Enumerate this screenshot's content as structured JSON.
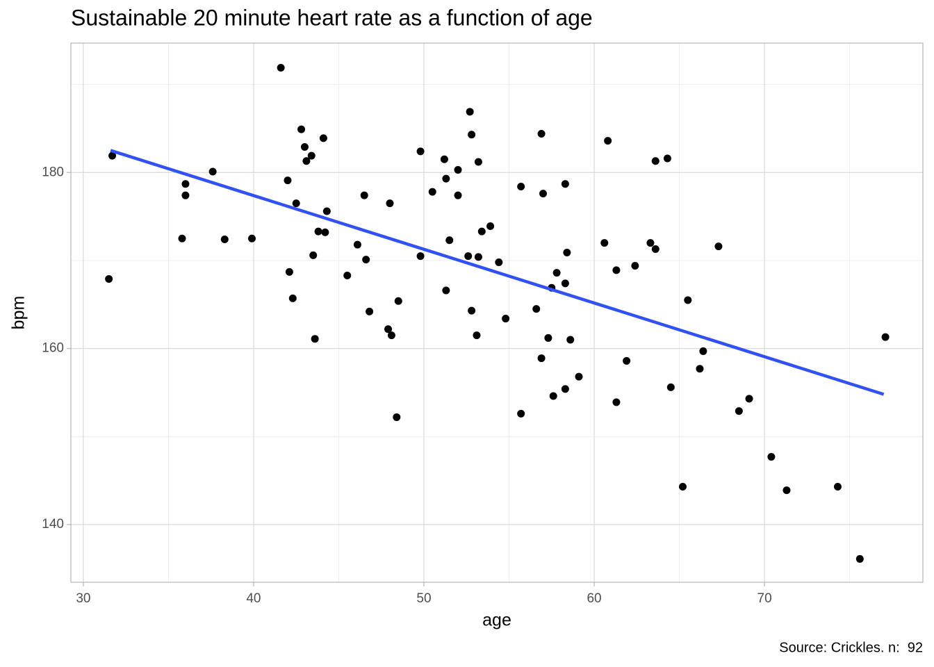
{
  "chart_data": {
    "type": "scatter",
    "title": "Sustainable 20 minute heart rate as a function of age",
    "x_label": "age",
    "y_label": "bpm",
    "caption": "Source: Crickles. n:  92",
    "x": [
      31.7,
      31.5,
      36.0,
      36.0,
      37.6,
      35.8,
      38.3,
      39.9,
      41.6,
      42.0,
      42.8,
      43.0,
      43.4,
      43.1,
      44.1,
      42.5,
      44.3,
      43.8,
      44.2,
      43.5,
      42.1,
      42.3,
      43.6,
      45.5,
      46.1,
      46.5,
      46.6,
      46.8,
      47.9,
      48.1,
      48.0,
      48.5,
      48.4,
      49.8,
      49.8,
      50.5,
      51.2,
      51.3,
      52.0,
      51.5,
      52.0,
      51.3,
      52.7,
      52.8,
      53.2,
      53.4,
      53.9,
      52.6,
      53.2,
      54.4,
      52.8,
      53.1,
      54.8,
      55.7,
      56.9,
      57.0,
      58.3,
      58.4,
      57.8,
      57.5,
      58.3,
      56.6,
      57.3,
      58.6,
      56.9,
      59.1,
      58.3,
      57.6,
      55.7,
      60.8,
      60.6,
      61.3,
      62.4,
      63.6,
      64.3,
      63.3,
      63.6,
      61.9,
      61.3,
      65.5,
      67.3,
      66.4,
      66.2,
      64.5,
      65.2,
      68.5,
      69.1,
      70.4,
      71.3,
      74.3,
      75.6,
      77.1
    ],
    "values": [
      181.9,
      167.9,
      178.7,
      177.4,
      180.1,
      172.5,
      172.4,
      172.5,
      191.9,
      179.1,
      184.9,
      182.9,
      181.9,
      181.3,
      183.9,
      176.5,
      175.6,
      173.3,
      173.2,
      170.6,
      168.7,
      165.7,
      161.1,
      168.3,
      171.8,
      177.4,
      170.1,
      164.2,
      162.2,
      161.5,
      176.5,
      165.4,
      152.2,
      182.4,
      170.5,
      177.8,
      181.5,
      179.3,
      180.3,
      172.3,
      177.4,
      166.6,
      186.9,
      184.3,
      181.2,
      173.3,
      173.9,
      170.5,
      170.4,
      169.8,
      164.3,
      161.5,
      163.4,
      178.4,
      184.4,
      177.6,
      178.7,
      170.9,
      168.6,
      166.9,
      167.4,
      164.5,
      161.2,
      161.0,
      158.9,
      156.8,
      155.4,
      154.6,
      152.6,
      183.6,
      172.0,
      168.9,
      169.4,
      181.3,
      181.6,
      172.0,
      171.3,
      158.6,
      153.9,
      165.5,
      171.6,
      159.7,
      157.7,
      155.6,
      144.3,
      152.9,
      154.3,
      147.7,
      143.9,
      144.3,
      136.1,
      161.3
    ],
    "color": "#000000",
    "fit": {
      "color": "#3050f8",
      "x": [
        31.6,
        77.0
      ],
      "y": [
        182.5,
        154.8
      ]
    },
    "xlim": [
      29.27,
      79.3
    ],
    "ylim": [
      133.45,
      194.7
    ],
    "xticks": [
      30,
      40,
      50,
      60,
      70
    ],
    "yticks": [
      140,
      160,
      180
    ],
    "x_minor_grid": [
      35,
      45,
      55,
      65,
      75
    ],
    "y_minor_grid": [
      150,
      170,
      190
    ],
    "grid": true
  }
}
